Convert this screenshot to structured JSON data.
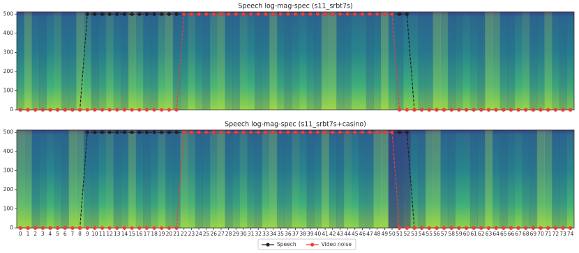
{
  "chart_data": [
    {
      "type": "line",
      "title": "Speech log-mag-spec (s11_srbt7s)",
      "x": [
        0,
        1,
        2,
        3,
        4,
        5,
        6,
        7,
        8,
        9,
        10,
        11,
        12,
        13,
        14,
        15,
        16,
        17,
        18,
        19,
        20,
        21,
        22,
        23,
        24,
        25,
        26,
        27,
        28,
        29,
        30,
        31,
        32,
        33,
        34,
        35,
        36,
        37,
        38,
        39,
        40,
        41,
        42,
        43,
        44,
        45,
        46,
        47,
        48,
        49,
        50,
        51,
        52,
        53,
        54,
        55,
        56,
        57,
        58,
        59,
        60,
        61,
        62,
        63,
        64,
        65,
        66,
        67,
        68,
        69,
        70,
        71,
        72,
        73,
        74
      ],
      "xlim": [
        -0.5,
        74.5
      ],
      "ylim": [
        0,
        512
      ],
      "yticks": [
        0,
        100,
        200,
        300,
        400,
        500
      ],
      "series": [
        {
          "name": "Speech",
          "color": "#222222",
          "values": [
            0,
            0,
            0,
            0,
            0,
            0,
            0,
            0,
            0,
            500,
            500,
            500,
            500,
            500,
            500,
            500,
            500,
            500,
            500,
            500,
            500,
            500,
            500,
            500,
            500,
            500,
            500,
            500,
            500,
            500,
            500,
            500,
            500,
            500,
            500,
            500,
            500,
            500,
            500,
            500,
            500,
            500,
            500,
            500,
            500,
            500,
            500,
            500,
            500,
            500,
            500,
            500,
            500,
            0,
            0,
            0,
            0,
            0,
            0,
            0,
            0,
            0,
            0,
            0,
            0,
            0,
            0,
            0,
            0,
            0,
            0,
            0,
            0,
            0,
            0
          ]
        },
        {
          "name": "Video noise",
          "color": "#e8413a",
          "values": [
            0,
            0,
            0,
            0,
            0,
            0,
            0,
            0,
            0,
            0,
            0,
            0,
            0,
            0,
            0,
            0,
            0,
            0,
            0,
            0,
            0,
            0,
            500,
            500,
            500,
            500,
            500,
            500,
            500,
            500,
            500,
            500,
            500,
            500,
            500,
            500,
            500,
            500,
            500,
            500,
            500,
            500,
            500,
            500,
            500,
            500,
            500,
            500,
            500,
            500,
            500,
            0,
            0,
            0,
            0,
            0,
            0,
            0,
            0,
            0,
            0,
            0,
            0,
            0,
            0,
            0,
            0,
            0,
            0,
            0,
            0,
            0,
            0,
            0,
            0
          ]
        }
      ]
    },
    {
      "type": "line",
      "title": "Speech log-mag-spec (s11_srbt7s+casino)",
      "x": [
        0,
        1,
        2,
        3,
        4,
        5,
        6,
        7,
        8,
        9,
        10,
        11,
        12,
        13,
        14,
        15,
        16,
        17,
        18,
        19,
        20,
        21,
        22,
        23,
        24,
        25,
        26,
        27,
        28,
        29,
        30,
        31,
        32,
        33,
        34,
        35,
        36,
        37,
        38,
        39,
        40,
        41,
        42,
        43,
        44,
        45,
        46,
        47,
        48,
        49,
        50,
        51,
        52,
        53,
        54,
        55,
        56,
        57,
        58,
        59,
        60,
        61,
        62,
        63,
        64,
        65,
        66,
        67,
        68,
        69,
        70,
        71,
        72,
        73,
        74
      ],
      "xlim": [
        -0.5,
        74.5
      ],
      "xticks": [
        0,
        1,
        2,
        3,
        4,
        5,
        6,
        7,
        8,
        9,
        10,
        11,
        12,
        13,
        14,
        15,
        16,
        17,
        18,
        19,
        20,
        21,
        22,
        23,
        24,
        25,
        26,
        27,
        28,
        29,
        30,
        31,
        32,
        33,
        34,
        35,
        36,
        37,
        38,
        39,
        40,
        41,
        42,
        43,
        44,
        45,
        46,
        47,
        48,
        49,
        50,
        51,
        52,
        53,
        54,
        55,
        56,
        57,
        58,
        59,
        60,
        61,
        62,
        63,
        64,
        65,
        66,
        67,
        68,
        69,
        70,
        71,
        72,
        73,
        74
      ],
      "ylim": [
        0,
        512
      ],
      "yticks": [
        0,
        100,
        200,
        300,
        400,
        500
      ],
      "legend": "lower center",
      "series": [
        {
          "name": "Speech",
          "color": "#222222",
          "values": [
            0,
            0,
            0,
            0,
            0,
            0,
            0,
            0,
            0,
            500,
            500,
            500,
            500,
            500,
            500,
            500,
            500,
            500,
            500,
            500,
            500,
            500,
            500,
            500,
            500,
            500,
            500,
            500,
            500,
            500,
            500,
            500,
            500,
            500,
            500,
            500,
            500,
            500,
            500,
            500,
            500,
            500,
            500,
            500,
            500,
            500,
            500,
            500,
            500,
            500,
            500,
            500,
            500,
            0,
            0,
            0,
            0,
            0,
            0,
            0,
            0,
            0,
            0,
            0,
            0,
            0,
            0,
            0,
            0,
            0,
            0,
            0,
            0,
            0,
            0
          ]
        },
        {
          "name": "Video noise",
          "color": "#e8413a",
          "values": [
            0,
            0,
            0,
            0,
            0,
            0,
            0,
            0,
            0,
            0,
            0,
            0,
            0,
            0,
            0,
            0,
            0,
            0,
            0,
            0,
            0,
            0,
            500,
            500,
            500,
            500,
            500,
            500,
            500,
            500,
            500,
            500,
            500,
            500,
            500,
            500,
            500,
            500,
            500,
            500,
            500,
            500,
            500,
            500,
            500,
            500,
            500,
            500,
            500,
            500,
            500,
            0,
            0,
            0,
            0,
            0,
            0,
            0,
            0,
            0,
            0,
            0,
            0,
            0,
            0,
            0,
            0,
            0,
            0,
            0,
            0,
            0,
            0,
            0,
            0
          ]
        }
      ]
    }
  ]
}
